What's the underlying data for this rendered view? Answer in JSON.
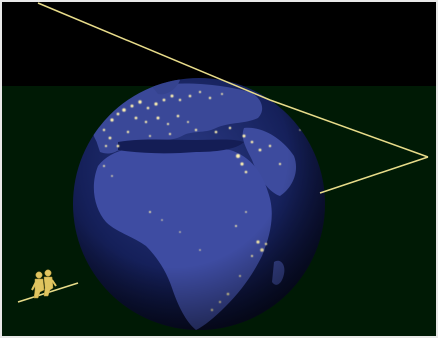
{
  "colors": {
    "sky": "#000000",
    "ground": "#001a05",
    "ocean": "#101a4a",
    "land": "#3c4a9c",
    "city_lights": "#fff2b0",
    "sightline": "#e8dc8a",
    "observers": "#e0c560",
    "border": "#e8e8e8"
  },
  "icons": {
    "earth": "earth-night-globe-icon",
    "observers": "two-observers-icon"
  }
}
